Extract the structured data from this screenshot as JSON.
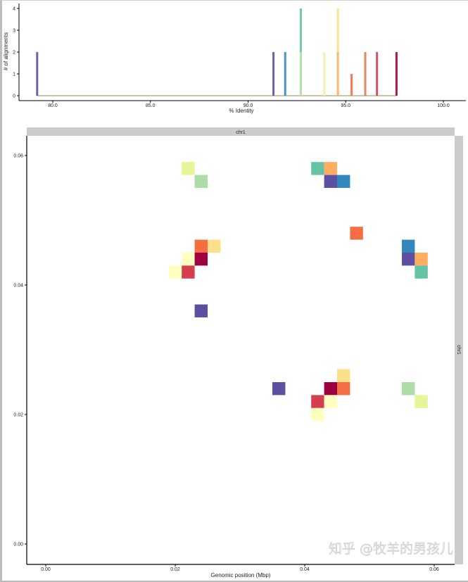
{
  "chart_data": [
    {
      "type": "bar",
      "xlabel": "% Identity",
      "ylabel": "# of alignments",
      "xlim": [
        78,
        101
      ],
      "ylim": [
        0,
        4
      ],
      "x_ticks": [
        "80.0",
        "85.0",
        "90.0",
        "95.0",
        "100.0"
      ],
      "y_ticks": [
        "0",
        "1",
        "2",
        "3",
        "4"
      ],
      "grid": false,
      "bars": [
        {
          "identity": 79.2,
          "count": 2,
          "color": "#5e4fa2"
        },
        {
          "identity": 91.3,
          "count": 2,
          "color": "#5e4fa2"
        },
        {
          "identity": 91.9,
          "count": 2,
          "color": "#3288bd"
        },
        {
          "identity": 92.7,
          "count": 2,
          "color": "#abdda4"
        },
        {
          "identity": 92.7,
          "count": 2,
          "color": "#66c2a5",
          "stack_base": 2
        },
        {
          "identity": 93.9,
          "count": 2,
          "color": "#f4f0a0"
        },
        {
          "identity": 94.6,
          "count": 2,
          "color": "#fdae61"
        },
        {
          "identity": 94.6,
          "count": 2,
          "color": "#fee08b",
          "stack_base": 2
        },
        {
          "identity": 95.3,
          "count": 1,
          "color": "#f46d43"
        },
        {
          "identity": 96.0,
          "count": 2,
          "color": "#e07a50"
        },
        {
          "identity": 96.6,
          "count": 2,
          "color": "#d53e4f"
        },
        {
          "identity": 97.6,
          "count": 2,
          "color": "#9e0142"
        }
      ]
    },
    {
      "type": "heatmap",
      "facet_top": "chr1",
      "facet_right": "chr1",
      "xlabel": "Genomic position (Mbp)",
      "ylabel": "",
      "xlim": [
        -0.003,
        0.063
      ],
      "ylim": [
        -0.003,
        0.064
      ],
      "x_ticks": [
        "0.00",
        "0.02",
        "0.04",
        "0.06"
      ],
      "y_ticks": [
        "0.00",
        "0.02",
        "0.04",
        "0.06"
      ],
      "tile_size": 0.002,
      "grid": false,
      "tiles": [
        {
          "x": 0.022,
          "y": 0.058,
          "color": "#e6f598"
        },
        {
          "x": 0.024,
          "y": 0.056,
          "color": "#abdda4"
        },
        {
          "x": 0.024,
          "y": 0.046,
          "color": "#f46d43"
        },
        {
          "x": 0.026,
          "y": 0.046,
          "color": "#fee08b"
        },
        {
          "x": 0.022,
          "y": 0.044,
          "color": "#ffffbf"
        },
        {
          "x": 0.024,
          "y": 0.044,
          "color": "#9e0142"
        },
        {
          "x": 0.02,
          "y": 0.042,
          "color": "#ffffbf"
        },
        {
          "x": 0.022,
          "y": 0.042,
          "color": "#d53e4f"
        },
        {
          "x": 0.024,
          "y": 0.036,
          "color": "#5e4fa2"
        },
        {
          "x": 0.042,
          "y": 0.058,
          "color": "#66c2a5"
        },
        {
          "x": 0.044,
          "y": 0.058,
          "color": "#fdae61"
        },
        {
          "x": 0.044,
          "y": 0.056,
          "color": "#5e4fa2"
        },
        {
          "x": 0.046,
          "y": 0.056,
          "color": "#3288bd"
        },
        {
          "x": 0.048,
          "y": 0.048,
          "color": "#f46d43"
        },
        {
          "x": 0.056,
          "y": 0.046,
          "color": "#3288bd"
        },
        {
          "x": 0.056,
          "y": 0.044,
          "color": "#5e4fa2"
        },
        {
          "x": 0.058,
          "y": 0.044,
          "color": "#fdae61"
        },
        {
          "x": 0.058,
          "y": 0.042,
          "color": "#66c2a5"
        },
        {
          "x": 0.036,
          "y": 0.024,
          "color": "#5e4fa2"
        },
        {
          "x": 0.046,
          "y": 0.026,
          "color": "#fee08b"
        },
        {
          "x": 0.044,
          "y": 0.024,
          "color": "#9e0142"
        },
        {
          "x": 0.046,
          "y": 0.024,
          "color": "#f46d43"
        },
        {
          "x": 0.042,
          "y": 0.022,
          "color": "#d53e4f"
        },
        {
          "x": 0.044,
          "y": 0.022,
          "color": "#ffffbf"
        },
        {
          "x": 0.042,
          "y": 0.02,
          "color": "#ffffbf"
        },
        {
          "x": 0.056,
          "y": 0.024,
          "color": "#abdda4"
        },
        {
          "x": 0.058,
          "y": 0.022,
          "color": "#e6f598"
        }
      ]
    }
  ],
  "watermark": "知乎 @牧羊的男孩儿"
}
